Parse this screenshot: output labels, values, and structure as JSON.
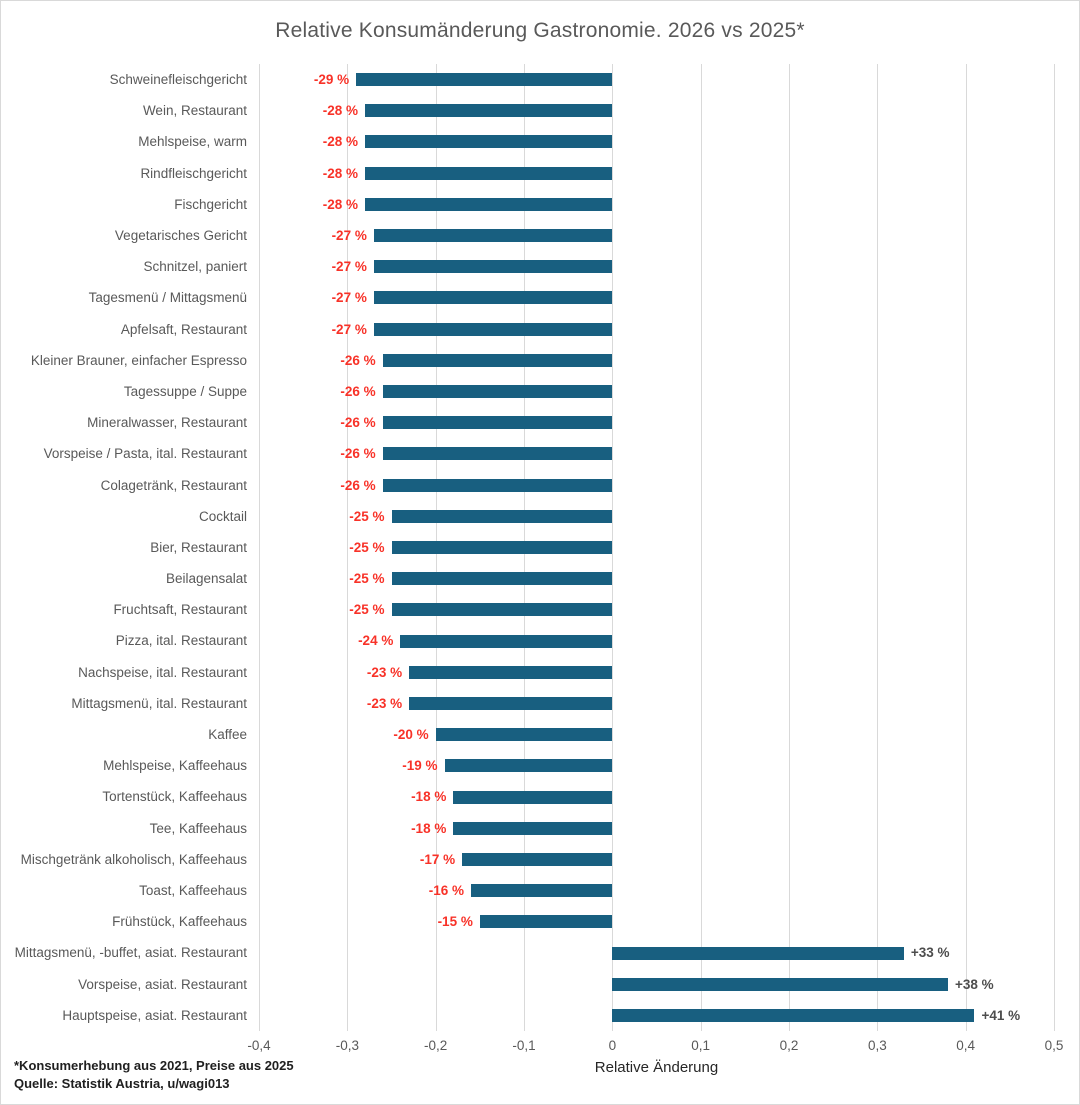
{
  "title": "Relative Konsumänderung Gastronomie. 2026 vs 2025*",
  "footnotes": [
    "*Konsumerhebung aus 2021, Preise aus 2025",
    "Quelle: Statistik Austria, u/wagi013"
  ],
  "chart_data": {
    "type": "bar",
    "orientation": "horizontal",
    "title": "Relative Konsumänderung Gastronomie. 2026 vs 2025*",
    "xlabel": "Relative Änderung",
    "xlim": [
      -0.4,
      0.5
    ],
    "grid": true,
    "x_ticks": [
      {
        "value": -0.4,
        "label": "-0,4"
      },
      {
        "value": -0.3,
        "label": "-0,3"
      },
      {
        "value": -0.2,
        "label": "-0,2"
      },
      {
        "value": -0.1,
        "label": "-0,1"
      },
      {
        "value": 0,
        "label": "0"
      },
      {
        "value": 0.1,
        "label": "0,1"
      },
      {
        "value": 0.2,
        "label": "0,2"
      },
      {
        "value": 0.3,
        "label": "0,3"
      },
      {
        "value": 0.4,
        "label": "0,4"
      },
      {
        "value": 0.5,
        "label": "0,5"
      }
    ],
    "categories": [
      "Schweinefleischgericht",
      "Wein, Restaurant",
      "Mehlspeise, warm",
      "Rindfleischgericht",
      "Fischgericht",
      "Vegetarisches Gericht",
      "Schnitzel, paniert",
      "Tagesmenü / Mittagsmenü",
      "Apfelsaft, Restaurant",
      "Kleiner Brauner, einfacher Espresso",
      "Tagessuppe / Suppe",
      "Mineralwasser, Restaurant",
      "Vorspeise / Pasta, ital. Restaurant",
      "Colagetränk, Restaurant",
      "Cocktail",
      "Bier, Restaurant",
      "Beilagensalat",
      "Fruchtsaft, Restaurant",
      "Pizza, ital. Restaurant",
      "Nachspeise, ital. Restaurant",
      "Mittagsmenü, ital. Restaurant",
      "Kaffee",
      "Mehlspeise, Kaffeehaus",
      "Tortenstück, Kaffeehaus",
      "Tee, Kaffeehaus",
      "Mischgetränk alkoholisch, Kaffeehaus",
      "Toast, Kaffeehaus",
      "Frühstück, Kaffeehaus",
      "Mittagsmenü, -buffet, asiat. Restaurant",
      "Vorspeise, asiat. Restaurant",
      "Hauptspeise, asiat. Restaurant"
    ],
    "values": [
      -0.29,
      -0.28,
      -0.28,
      -0.28,
      -0.28,
      -0.27,
      -0.27,
      -0.27,
      -0.27,
      -0.26,
      -0.26,
      -0.26,
      -0.26,
      -0.26,
      -0.25,
      -0.25,
      -0.25,
      -0.25,
      -0.24,
      -0.23,
      -0.23,
      -0.2,
      -0.19,
      -0.18,
      -0.18,
      -0.17,
      -0.16,
      -0.15,
      0.33,
      0.38,
      0.41
    ],
    "data_labels": [
      "-29 %",
      "-28 %",
      "-28 %",
      "-28 %",
      "-28 %",
      "-27 %",
      "-27 %",
      "-27 %",
      "-27 %",
      "-26 %",
      "-26 %",
      "-26 %",
      "-26 %",
      "-26 %",
      "-25 %",
      "-25 %",
      "-25 %",
      "-25 %",
      "-24 %",
      "-23 %",
      "-23 %",
      "-20 %",
      "-19 %",
      "-18 %",
      "-18 %",
      "-17 %",
      "-16 %",
      "-15 %",
      "+33 %",
      "+38 %",
      "+41 %"
    ],
    "colors": {
      "bar": "#185f80",
      "negative_label": "#f83228",
      "positive_label": "#4d4d4d",
      "grid": "#d9d9d9",
      "axis_text": "#595959",
      "title_text": "#595959"
    }
  }
}
